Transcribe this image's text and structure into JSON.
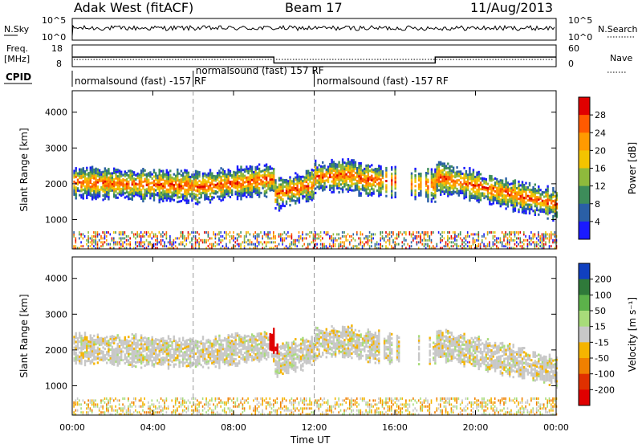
{
  "header": {
    "station": "Adak West (fitACF)",
    "beam": "Beam 17",
    "date": "11/Aug/2013"
  },
  "labels": {
    "nsky": "N.Sky",
    "nsearch": "N.Search",
    "freq": "Freq.",
    "freq_unit": "[MHz]",
    "nave": "Nave",
    "cpid": "CPID",
    "ylabel": "Slant Range [km]",
    "xlabel": "Time UT",
    "power_label": "Power [dB]",
    "velocity_label": "Velocity [m s⁻¹]"
  },
  "cpid_segments": [
    {
      "label": "normalsound (fast) -157 RF",
      "start_hr": 0,
      "end_hr": 6
    },
    {
      "label": "normalsound (fast) 157 RF",
      "start_hr": 6,
      "end_hr": 12
    },
    {
      "label": "normalsound (fast) -157 RF",
      "start_hr": 12,
      "end_hr": 24
    }
  ],
  "chart_data": [
    {
      "type": "line",
      "name": "N.Sky / N.Search",
      "y_ticks_left": [
        "10^5",
        "10^0"
      ],
      "y_ticks_right": [
        "10^5",
        "10^0"
      ]
    },
    {
      "type": "line",
      "name": "Freq / Nave",
      "y_ticks_left": [
        "18",
        "8"
      ],
      "y_ticks_right": [
        "60",
        "0"
      ],
      "freq_steps": [
        {
          "start_hr": 0,
          "end_hr": 10,
          "mhz": 12.4
        },
        {
          "start_hr": 10,
          "end_hr": 18,
          "mhz": 9.7
        },
        {
          "start_hr": 18,
          "end_hr": 24,
          "mhz": 12.4
        }
      ]
    },
    {
      "type": "heatmap",
      "name": "Power",
      "xlabel": "Time UT",
      "ylabel": "Slant Range [km]",
      "xlim": [
        0,
        24
      ],
      "ylim": [
        180,
        4600
      ],
      "x_ticks": [
        "00:00",
        "04:00",
        "08:00",
        "12:00",
        "16:00",
        "20:00",
        "00:00"
      ],
      "y_ticks": [
        1000,
        2000,
        3000,
        4000
      ],
      "colorbar": {
        "label": "Power [dB]",
        "ticks": [
          "28",
          "24",
          "20",
          "16",
          "12",
          "8",
          "4"
        ],
        "colors": [
          "#e00000",
          "#ff5a00",
          "#ff9a00",
          "#f3c400",
          "#8fba3c",
          "#3d8c5a",
          "#2a5fa6",
          "#1a1aff"
        ]
      }
    },
    {
      "type": "heatmap",
      "name": "Velocity",
      "xlabel": "Time UT",
      "ylabel": "Slant Range [km]",
      "xlim": [
        0,
        24
      ],
      "ylim": [
        180,
        4600
      ],
      "x_ticks": [
        "00:00",
        "04:00",
        "08:00",
        "12:00",
        "16:00",
        "20:00",
        "00:00"
      ],
      "y_ticks": [
        1000,
        2000,
        3000,
        4000
      ],
      "colorbar": {
        "label": "Velocity [m s⁻¹]",
        "ticks": [
          "200",
          "100",
          "50",
          "15",
          "-15",
          "-50",
          "-100",
          "-200"
        ],
        "colors": [
          "#1040c0",
          "#2f7a3a",
          "#5cb24a",
          "#a8dc7a",
          "#c8c8c8",
          "#f5b400",
          "#f08000",
          "#e03000",
          "#e00000"
        ]
      }
    }
  ]
}
